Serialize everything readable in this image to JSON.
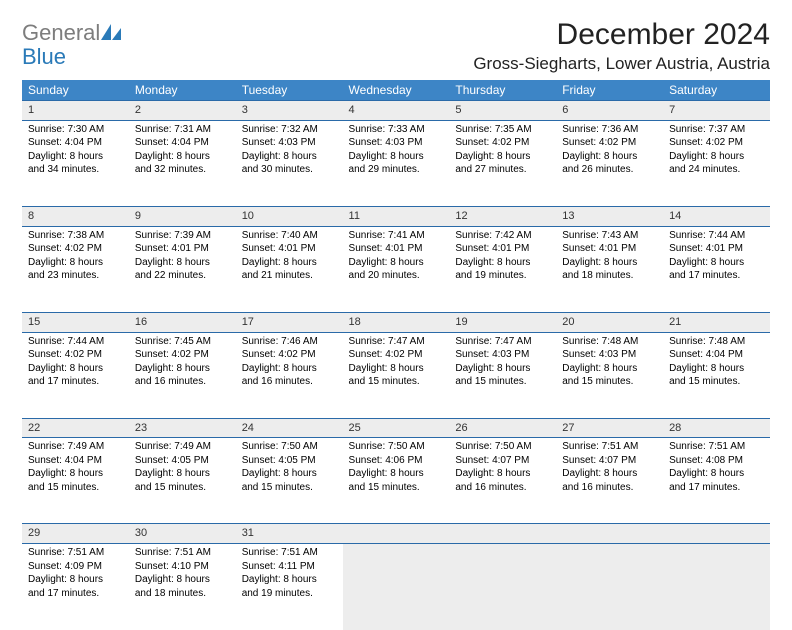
{
  "logo": {
    "word1": "General",
    "word2": "Blue"
  },
  "title": "December 2024",
  "location": "Gross-Siegharts, Lower Austria, Austria",
  "colors": {
    "header_bg": "#3d85c6",
    "header_text": "#ffffff",
    "daynum_bg": "#ededed",
    "rule": "#2a6aa8",
    "logo_gray": "#7d7d7d",
    "logo_blue": "#2a7ab8",
    "page_bg": "#ffffff"
  },
  "days_of_week": [
    "Sunday",
    "Monday",
    "Tuesday",
    "Wednesday",
    "Thursday",
    "Friday",
    "Saturday"
  ],
  "weeks": [
    [
      {
        "n": "1",
        "sunrise": "Sunrise: 7:30 AM",
        "sunset": "Sunset: 4:04 PM",
        "d1": "Daylight: 8 hours",
        "d2": "and 34 minutes."
      },
      {
        "n": "2",
        "sunrise": "Sunrise: 7:31 AM",
        "sunset": "Sunset: 4:04 PM",
        "d1": "Daylight: 8 hours",
        "d2": "and 32 minutes."
      },
      {
        "n": "3",
        "sunrise": "Sunrise: 7:32 AM",
        "sunset": "Sunset: 4:03 PM",
        "d1": "Daylight: 8 hours",
        "d2": "and 30 minutes."
      },
      {
        "n": "4",
        "sunrise": "Sunrise: 7:33 AM",
        "sunset": "Sunset: 4:03 PM",
        "d1": "Daylight: 8 hours",
        "d2": "and 29 minutes."
      },
      {
        "n": "5",
        "sunrise": "Sunrise: 7:35 AM",
        "sunset": "Sunset: 4:02 PM",
        "d1": "Daylight: 8 hours",
        "d2": "and 27 minutes."
      },
      {
        "n": "6",
        "sunrise": "Sunrise: 7:36 AM",
        "sunset": "Sunset: 4:02 PM",
        "d1": "Daylight: 8 hours",
        "d2": "and 26 minutes."
      },
      {
        "n": "7",
        "sunrise": "Sunrise: 7:37 AM",
        "sunset": "Sunset: 4:02 PM",
        "d1": "Daylight: 8 hours",
        "d2": "and 24 minutes."
      }
    ],
    [
      {
        "n": "8",
        "sunrise": "Sunrise: 7:38 AM",
        "sunset": "Sunset: 4:02 PM",
        "d1": "Daylight: 8 hours",
        "d2": "and 23 minutes."
      },
      {
        "n": "9",
        "sunrise": "Sunrise: 7:39 AM",
        "sunset": "Sunset: 4:01 PM",
        "d1": "Daylight: 8 hours",
        "d2": "and 22 minutes."
      },
      {
        "n": "10",
        "sunrise": "Sunrise: 7:40 AM",
        "sunset": "Sunset: 4:01 PM",
        "d1": "Daylight: 8 hours",
        "d2": "and 21 minutes."
      },
      {
        "n": "11",
        "sunrise": "Sunrise: 7:41 AM",
        "sunset": "Sunset: 4:01 PM",
        "d1": "Daylight: 8 hours",
        "d2": "and 20 minutes."
      },
      {
        "n": "12",
        "sunrise": "Sunrise: 7:42 AM",
        "sunset": "Sunset: 4:01 PM",
        "d1": "Daylight: 8 hours",
        "d2": "and 19 minutes."
      },
      {
        "n": "13",
        "sunrise": "Sunrise: 7:43 AM",
        "sunset": "Sunset: 4:01 PM",
        "d1": "Daylight: 8 hours",
        "d2": "and 18 minutes."
      },
      {
        "n": "14",
        "sunrise": "Sunrise: 7:44 AM",
        "sunset": "Sunset: 4:01 PM",
        "d1": "Daylight: 8 hours",
        "d2": "and 17 minutes."
      }
    ],
    [
      {
        "n": "15",
        "sunrise": "Sunrise: 7:44 AM",
        "sunset": "Sunset: 4:02 PM",
        "d1": "Daylight: 8 hours",
        "d2": "and 17 minutes."
      },
      {
        "n": "16",
        "sunrise": "Sunrise: 7:45 AM",
        "sunset": "Sunset: 4:02 PM",
        "d1": "Daylight: 8 hours",
        "d2": "and 16 minutes."
      },
      {
        "n": "17",
        "sunrise": "Sunrise: 7:46 AM",
        "sunset": "Sunset: 4:02 PM",
        "d1": "Daylight: 8 hours",
        "d2": "and 16 minutes."
      },
      {
        "n": "18",
        "sunrise": "Sunrise: 7:47 AM",
        "sunset": "Sunset: 4:02 PM",
        "d1": "Daylight: 8 hours",
        "d2": "and 15 minutes."
      },
      {
        "n": "19",
        "sunrise": "Sunrise: 7:47 AM",
        "sunset": "Sunset: 4:03 PM",
        "d1": "Daylight: 8 hours",
        "d2": "and 15 minutes."
      },
      {
        "n": "20",
        "sunrise": "Sunrise: 7:48 AM",
        "sunset": "Sunset: 4:03 PM",
        "d1": "Daylight: 8 hours",
        "d2": "and 15 minutes."
      },
      {
        "n": "21",
        "sunrise": "Sunrise: 7:48 AM",
        "sunset": "Sunset: 4:04 PM",
        "d1": "Daylight: 8 hours",
        "d2": "and 15 minutes."
      }
    ],
    [
      {
        "n": "22",
        "sunrise": "Sunrise: 7:49 AM",
        "sunset": "Sunset: 4:04 PM",
        "d1": "Daylight: 8 hours",
        "d2": "and 15 minutes."
      },
      {
        "n": "23",
        "sunrise": "Sunrise: 7:49 AM",
        "sunset": "Sunset: 4:05 PM",
        "d1": "Daylight: 8 hours",
        "d2": "and 15 minutes."
      },
      {
        "n": "24",
        "sunrise": "Sunrise: 7:50 AM",
        "sunset": "Sunset: 4:05 PM",
        "d1": "Daylight: 8 hours",
        "d2": "and 15 minutes."
      },
      {
        "n": "25",
        "sunrise": "Sunrise: 7:50 AM",
        "sunset": "Sunset: 4:06 PM",
        "d1": "Daylight: 8 hours",
        "d2": "and 15 minutes."
      },
      {
        "n": "26",
        "sunrise": "Sunrise: 7:50 AM",
        "sunset": "Sunset: 4:07 PM",
        "d1": "Daylight: 8 hours",
        "d2": "and 16 minutes."
      },
      {
        "n": "27",
        "sunrise": "Sunrise: 7:51 AM",
        "sunset": "Sunset: 4:07 PM",
        "d1": "Daylight: 8 hours",
        "d2": "and 16 minutes."
      },
      {
        "n": "28",
        "sunrise": "Sunrise: 7:51 AM",
        "sunset": "Sunset: 4:08 PM",
        "d1": "Daylight: 8 hours",
        "d2": "and 17 minutes."
      }
    ],
    [
      {
        "n": "29",
        "sunrise": "Sunrise: 7:51 AM",
        "sunset": "Sunset: 4:09 PM",
        "d1": "Daylight: 8 hours",
        "d2": "and 17 minutes."
      },
      {
        "n": "30",
        "sunrise": "Sunrise: 7:51 AM",
        "sunset": "Sunset: 4:10 PM",
        "d1": "Daylight: 8 hours",
        "d2": "and 18 minutes."
      },
      {
        "n": "31",
        "sunrise": "Sunrise: 7:51 AM",
        "sunset": "Sunset: 4:11 PM",
        "d1": "Daylight: 8 hours",
        "d2": "and 19 minutes."
      },
      null,
      null,
      null,
      null
    ]
  ]
}
